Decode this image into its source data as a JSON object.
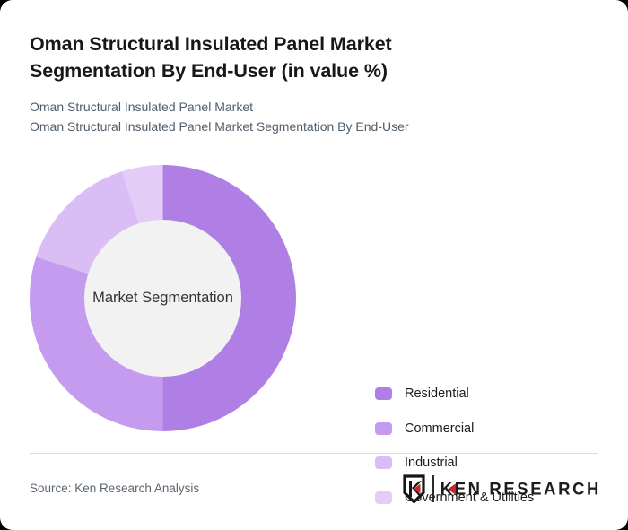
{
  "page": {
    "title": "Oman Structural Insulated Panel Market Segmentation By End-User (in value %)",
    "subtitle_line1": "Oman Structural Insulated Panel Market",
    "subtitle_line2": "Oman Structural Insulated Panel Market Segmentation By End-User",
    "source": "Source: Ken Research Analysis"
  },
  "logo": {
    "badge_letter": "K",
    "brand_first_letter": "K",
    "brand_rest": "EN RESEARCH",
    "accent_color": "#c9252b",
    "ink_color": "#1d1d1d"
  },
  "chart_data": {
    "type": "pie",
    "donut": true,
    "title": "Oman Structural Insulated Panel Market Segmentation By End-User (in value %)",
    "center_label": "Market Segmentation",
    "unit": "%",
    "start_angle_deg": 0,
    "direction": "clockwise",
    "legend_position": "right",
    "categories": [
      "Residential",
      "Commercial",
      "Industrial",
      "Government & Utilities"
    ],
    "values": [
      50,
      30,
      15,
      5
    ],
    "colors": [
      "#b07fe6",
      "#c59bef",
      "#d9bdf4",
      "#e3cdf7"
    ],
    "center_fill": "#f2f2f2"
  }
}
